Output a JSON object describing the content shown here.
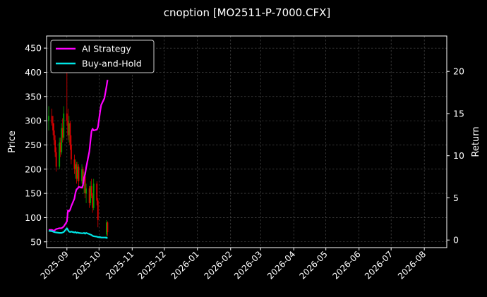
{
  "chart_data": {
    "type": "line",
    "title": "cnoption [MO2511-P-7000.CFX]",
    "ylabel": "Price",
    "ylabel_right": "Return",
    "ylim": [
      38,
      475
    ],
    "ylim_right": [
      -0.9,
      24.2
    ],
    "xlim": [
      "2025-08-13",
      "2026-08-22"
    ],
    "grid": true,
    "legend_position": "top-left",
    "x_ticks": [
      "2025-09",
      "2025-10",
      "2025-11",
      "2025-12",
      "2026-01",
      "2026-02",
      "2026-03",
      "2026-04",
      "2026-05",
      "2026-06",
      "2026-07",
      "2026-08"
    ],
    "y_ticks": [
      50,
      100,
      150,
      200,
      250,
      300,
      350,
      400,
      450
    ],
    "y_ticks_right": [
      0,
      5,
      10,
      15,
      20
    ],
    "colors": {
      "ai": "#ff00ff",
      "bh": "#00e5e5",
      "up": "#00a000",
      "down": "#e00000",
      "grid": "#555555"
    },
    "series": [
      {
        "name": "AI Strategy",
        "axis": "right",
        "x": [
          "2025-08-15",
          "2025-08-18",
          "2025-08-20",
          "2025-08-22",
          "2025-08-25",
          "2025-08-27",
          "2025-08-29",
          "2025-09-01",
          "2025-09-02",
          "2025-09-03",
          "2025-09-04",
          "2025-09-05",
          "2025-09-08",
          "2025-09-09",
          "2025-09-10",
          "2025-09-11",
          "2025-09-12",
          "2025-09-15",
          "2025-09-16",
          "2025-09-17",
          "2025-09-18",
          "2025-09-19",
          "2025-09-22",
          "2025-09-23",
          "2025-09-24",
          "2025-09-25",
          "2025-09-26",
          "2025-09-29",
          "2025-09-30",
          "2025-10-01",
          "2025-10-02",
          "2025-10-03",
          "2025-10-06",
          "2025-10-07",
          "2025-10-08",
          "2025-10-09"
        ],
        "values": [
          1.2,
          1.2,
          1.1,
          1.3,
          1.4,
          1.4,
          1.6,
          2.2,
          3.5,
          3.4,
          3.6,
          4.0,
          4.9,
          5.6,
          6.0,
          6.1,
          6.3,
          6.2,
          6.5,
          7.4,
          7.8,
          8.6,
          10.5,
          11.8,
          12.9,
          13.2,
          13.0,
          13.1,
          13.4,
          14.3,
          15.2,
          16.0,
          16.8,
          17.5,
          18.2,
          19.0
        ]
      },
      {
        "name": "Buy-and-Hold",
        "axis": "right",
        "x": [
          "2025-08-15",
          "2025-08-18",
          "2025-08-20",
          "2025-08-22",
          "2025-08-25",
          "2025-08-27",
          "2025-08-29",
          "2025-09-01",
          "2025-09-02",
          "2025-09-03",
          "2025-09-04",
          "2025-09-05",
          "2025-09-08",
          "2025-09-09",
          "2025-09-10",
          "2025-09-11",
          "2025-09-12",
          "2025-09-15",
          "2025-09-16",
          "2025-09-17",
          "2025-09-18",
          "2025-09-19",
          "2025-09-22",
          "2025-09-23",
          "2025-09-24",
          "2025-09-25",
          "2025-09-26",
          "2025-09-29",
          "2025-09-30",
          "2025-10-01",
          "2025-10-02",
          "2025-10-03",
          "2025-10-06",
          "2025-10-07",
          "2025-10-08",
          "2025-10-09"
        ],
        "values": [
          1.1,
          1.05,
          0.95,
          0.9,
          0.85,
          0.85,
          0.95,
          1.4,
          1.2,
          1.0,
          0.95,
          1.0,
          0.9,
          0.95,
          0.85,
          0.9,
          0.85,
          0.8,
          0.8,
          0.85,
          0.75,
          0.85,
          0.7,
          0.65,
          0.6,
          0.5,
          0.45,
          0.4,
          0.35,
          0.35,
          0.35,
          0.3,
          0.3,
          0.3,
          0.25,
          0.3
        ]
      }
    ],
    "candles": [
      {
        "x": "2025-08-15",
        "o": 300,
        "h": 330,
        "l": 280,
        "c": 310
      },
      {
        "x": "2025-08-18",
        "o": 310,
        "h": 325,
        "l": 290,
        "c": 295
      },
      {
        "x": "2025-08-19",
        "o": 295,
        "h": 310,
        "l": 270,
        "c": 280
      },
      {
        "x": "2025-08-20",
        "o": 280,
        "h": 295,
        "l": 250,
        "c": 260
      },
      {
        "x": "2025-08-21",
        "o": 260,
        "h": 270,
        "l": 225,
        "c": 235
      },
      {
        "x": "2025-08-22",
        "o": 235,
        "h": 245,
        "l": 195,
        "c": 205
      },
      {
        "x": "2025-08-25",
        "o": 205,
        "h": 265,
        "l": 200,
        "c": 255
      },
      {
        "x": "2025-08-26",
        "o": 255,
        "h": 265,
        "l": 225,
        "c": 235
      },
      {
        "x": "2025-08-27",
        "o": 235,
        "h": 295,
        "l": 230,
        "c": 285
      },
      {
        "x": "2025-08-28",
        "o": 285,
        "h": 305,
        "l": 255,
        "c": 265
      },
      {
        "x": "2025-08-29",
        "o": 265,
        "h": 330,
        "l": 260,
        "c": 315
      },
      {
        "x": "2025-09-01",
        "o": 315,
        "h": 400,
        "l": 290,
        "c": 300
      },
      {
        "x": "2025-09-02",
        "o": 300,
        "h": 325,
        "l": 260,
        "c": 270
      },
      {
        "x": "2025-09-03",
        "o": 270,
        "h": 310,
        "l": 255,
        "c": 295
      },
      {
        "x": "2025-09-04",
        "o": 295,
        "h": 300,
        "l": 240,
        "c": 250
      },
      {
        "x": "2025-09-05",
        "o": 250,
        "h": 270,
        "l": 210,
        "c": 220
      },
      {
        "x": "2025-09-08",
        "o": 220,
        "h": 230,
        "l": 190,
        "c": 200
      },
      {
        "x": "2025-09-09",
        "o": 200,
        "h": 220,
        "l": 180,
        "c": 210
      },
      {
        "x": "2025-09-10",
        "o": 210,
        "h": 215,
        "l": 170,
        "c": 180
      },
      {
        "x": "2025-09-11",
        "o": 180,
        "h": 215,
        "l": 175,
        "c": 205
      },
      {
        "x": "2025-09-12",
        "o": 205,
        "h": 210,
        "l": 165,
        "c": 175
      },
      {
        "x": "2025-09-15",
        "o": 175,
        "h": 210,
        "l": 170,
        "c": 200
      },
      {
        "x": "2025-09-16",
        "o": 200,
        "h": 205,
        "l": 160,
        "c": 170
      },
      {
        "x": "2025-09-17",
        "o": 170,
        "h": 195,
        "l": 150,
        "c": 185
      },
      {
        "x": "2025-09-18",
        "o": 185,
        "h": 190,
        "l": 140,
        "c": 150
      },
      {
        "x": "2025-09-19",
        "o": 150,
        "h": 170,
        "l": 130,
        "c": 160
      },
      {
        "x": "2025-09-22",
        "o": 160,
        "h": 165,
        "l": 120,
        "c": 130
      },
      {
        "x": "2025-09-23",
        "o": 130,
        "h": 175,
        "l": 125,
        "c": 165
      },
      {
        "x": "2025-09-24",
        "o": 165,
        "h": 180,
        "l": 140,
        "c": 145
      },
      {
        "x": "2025-09-25",
        "o": 145,
        "h": 150,
        "l": 110,
        "c": 120
      },
      {
        "x": "2025-09-26",
        "o": 120,
        "h": 180,
        "l": 115,
        "c": 170
      },
      {
        "x": "2025-09-29",
        "o": 170,
        "h": 175,
        "l": 125,
        "c": 135
      },
      {
        "x": "2025-09-30",
        "o": 135,
        "h": 140,
        "l": 80,
        "c": 95
      },
      {
        "x": "2025-10-08",
        "o": 65,
        "h": 95,
        "l": 60,
        "c": 90
      },
      {
        "x": "2025-10-09",
        "o": 90,
        "h": 92,
        "l": 62,
        "c": 70
      }
    ]
  },
  "legend": {
    "items": [
      {
        "label": "AI Strategy",
        "color": "#ff00ff"
      },
      {
        "label": "Buy-and-Hold",
        "color": "#00e5e5"
      }
    ]
  }
}
